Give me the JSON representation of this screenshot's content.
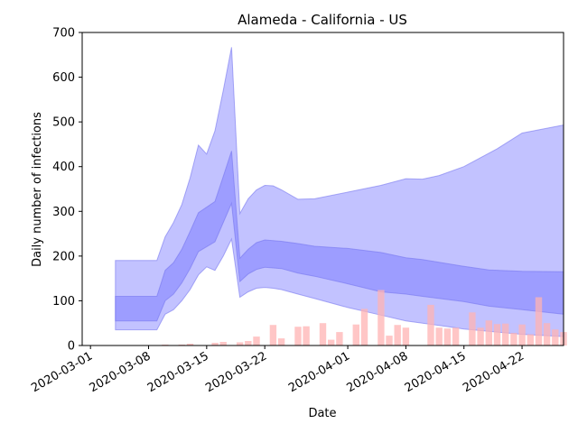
{
  "chart_data": {
    "type": "bar",
    "title": "Alameda - California - US",
    "xlabel": "Date",
    "ylabel": "Daily number of infections",
    "xlim": [
      "2020-02-29",
      "2020-04-27"
    ],
    "ylim": [
      0,
      700
    ],
    "x_ticks": [
      "2020-03-01",
      "2020-03-08",
      "2020-03-15",
      "2020-03-22",
      "2020-04-01",
      "2020-04-08",
      "2020-04-15",
      "2020-04-22"
    ],
    "y_ticks": [
      0,
      100,
      200,
      300,
      400,
      500,
      600,
      700
    ],
    "grid": false,
    "colors": {
      "bars": "#ffb3b3",
      "band_outer": "#bfbfff",
      "band_inner": "#9999ff",
      "band_edge": "#7777ee"
    },
    "bars": [
      {
        "date": "2020-03-10",
        "value": 2
      },
      {
        "date": "2020-03-12",
        "value": 2
      },
      {
        "date": "2020-03-13",
        "value": 4
      },
      {
        "date": "2020-03-16",
        "value": 6
      },
      {
        "date": "2020-03-17",
        "value": 8
      },
      {
        "date": "2020-03-19",
        "value": 7
      },
      {
        "date": "2020-03-20",
        "value": 10
      },
      {
        "date": "2020-03-21",
        "value": 20
      },
      {
        "date": "2020-03-23",
        "value": 46
      },
      {
        "date": "2020-03-24",
        "value": 16
      },
      {
        "date": "2020-03-26",
        "value": 42
      },
      {
        "date": "2020-03-27",
        "value": 43
      },
      {
        "date": "2020-03-29",
        "value": 50
      },
      {
        "date": "2020-03-30",
        "value": 13
      },
      {
        "date": "2020-03-31",
        "value": 30
      },
      {
        "date": "2020-04-02",
        "value": 47
      },
      {
        "date": "2020-04-03",
        "value": 82
      },
      {
        "date": "2020-04-05",
        "value": 124
      },
      {
        "date": "2020-04-06",
        "value": 22
      },
      {
        "date": "2020-04-07",
        "value": 46
      },
      {
        "date": "2020-04-08",
        "value": 40
      },
      {
        "date": "2020-04-11",
        "value": 91
      },
      {
        "date": "2020-04-12",
        "value": 40
      },
      {
        "date": "2020-04-13",
        "value": 38
      },
      {
        "date": "2020-04-14",
        "value": 40
      },
      {
        "date": "2020-04-16",
        "value": 74
      },
      {
        "date": "2020-04-17",
        "value": 40
      },
      {
        "date": "2020-04-18",
        "value": 56
      },
      {
        "date": "2020-04-19",
        "value": 48
      },
      {
        "date": "2020-04-20",
        "value": 49
      },
      {
        "date": "2020-04-21",
        "value": 28
      },
      {
        "date": "2020-04-22",
        "value": 47
      },
      {
        "date": "2020-04-23",
        "value": 25
      },
      {
        "date": "2020-04-24",
        "value": 108
      },
      {
        "date": "2020-04-25",
        "value": 50
      },
      {
        "date": "2020-04-26",
        "value": 36
      },
      {
        "date": "2020-04-27",
        "value": 30
      }
    ],
    "bands": [
      {
        "level": "outer",
        "points": [
          {
            "date": "2020-03-04",
            "lower": 35,
            "upper": 190
          },
          {
            "date": "2020-03-09",
            "lower": 35,
            "upper": 190
          },
          {
            "date": "2020-03-10",
            "lower": 70,
            "upper": 243
          },
          {
            "date": "2020-03-11",
            "lower": 80,
            "upper": 275
          },
          {
            "date": "2020-03-12",
            "lower": 100,
            "upper": 315
          },
          {
            "date": "2020-03-13",
            "lower": 125,
            "upper": 375
          },
          {
            "date": "2020-03-14",
            "lower": 158,
            "upper": 448
          },
          {
            "date": "2020-03-15",
            "lower": 176,
            "upper": 428
          },
          {
            "date": "2020-03-16",
            "lower": 168,
            "upper": 480
          },
          {
            "date": "2020-03-17",
            "lower": 200,
            "upper": 570
          },
          {
            "date": "2020-03-18",
            "lower": 238,
            "upper": 667
          },
          {
            "date": "2020-03-19",
            "lower": 108,
            "upper": 295
          },
          {
            "date": "2020-03-20",
            "lower": 120,
            "upper": 328
          },
          {
            "date": "2020-03-21",
            "lower": 128,
            "upper": 348
          },
          {
            "date": "2020-03-22",
            "lower": 130,
            "upper": 358
          },
          {
            "date": "2020-03-23",
            "lower": 128,
            "upper": 357
          },
          {
            "date": "2020-03-24",
            "lower": 125,
            "upper": 348
          },
          {
            "date": "2020-03-26",
            "lower": 115,
            "upper": 327
          },
          {
            "date": "2020-03-28",
            "lower": 105,
            "upper": 328
          },
          {
            "date": "2020-04-01",
            "lower": 85,
            "upper": 343
          },
          {
            "date": "2020-04-05",
            "lower": 68,
            "upper": 358
          },
          {
            "date": "2020-04-08",
            "lower": 55,
            "upper": 373
          },
          {
            "date": "2020-04-10",
            "lower": 50,
            "upper": 372
          },
          {
            "date": "2020-04-12",
            "lower": 45,
            "upper": 380
          },
          {
            "date": "2020-04-15",
            "lower": 37,
            "upper": 400
          },
          {
            "date": "2020-04-19",
            "lower": 30,
            "upper": 440
          },
          {
            "date": "2020-04-22",
            "lower": 25,
            "upper": 475
          },
          {
            "date": "2020-04-27",
            "lower": 20,
            "upper": 493
          }
        ]
      },
      {
        "level": "inner",
        "points": [
          {
            "date": "2020-03-04",
            "lower": 55,
            "upper": 110
          },
          {
            "date": "2020-03-09",
            "lower": 55,
            "upper": 110
          },
          {
            "date": "2020-03-10",
            "lower": 100,
            "upper": 168
          },
          {
            "date": "2020-03-11",
            "lower": 115,
            "upper": 185
          },
          {
            "date": "2020-03-12",
            "lower": 140,
            "upper": 215
          },
          {
            "date": "2020-03-13",
            "lower": 172,
            "upper": 255
          },
          {
            "date": "2020-03-14",
            "lower": 210,
            "upper": 297
          },
          {
            "date": "2020-03-16",
            "lower": 232,
            "upper": 322
          },
          {
            "date": "2020-03-17",
            "lower": 275,
            "upper": 378
          },
          {
            "date": "2020-03-18",
            "lower": 318,
            "upper": 435
          },
          {
            "date": "2020-03-19",
            "lower": 143,
            "upper": 195
          },
          {
            "date": "2020-03-20",
            "lower": 160,
            "upper": 215
          },
          {
            "date": "2020-03-21",
            "lower": 170,
            "upper": 230
          },
          {
            "date": "2020-03-22",
            "lower": 175,
            "upper": 236
          },
          {
            "date": "2020-03-24",
            "lower": 172,
            "upper": 233
          },
          {
            "date": "2020-03-26",
            "lower": 162,
            "upper": 228
          },
          {
            "date": "2020-03-28",
            "lower": 155,
            "upper": 222
          },
          {
            "date": "2020-04-01",
            "lower": 138,
            "upper": 217
          },
          {
            "date": "2020-04-05",
            "lower": 120,
            "upper": 208
          },
          {
            "date": "2020-04-08",
            "lower": 115,
            "upper": 196
          },
          {
            "date": "2020-04-10",
            "lower": 110,
            "upper": 192
          },
          {
            "date": "2020-04-15",
            "lower": 98,
            "upper": 177
          },
          {
            "date": "2020-04-18",
            "lower": 88,
            "upper": 169
          },
          {
            "date": "2020-04-22",
            "lower": 80,
            "upper": 166
          },
          {
            "date": "2020-04-27",
            "lower": 70,
            "upper": 165
          }
        ]
      }
    ]
  }
}
